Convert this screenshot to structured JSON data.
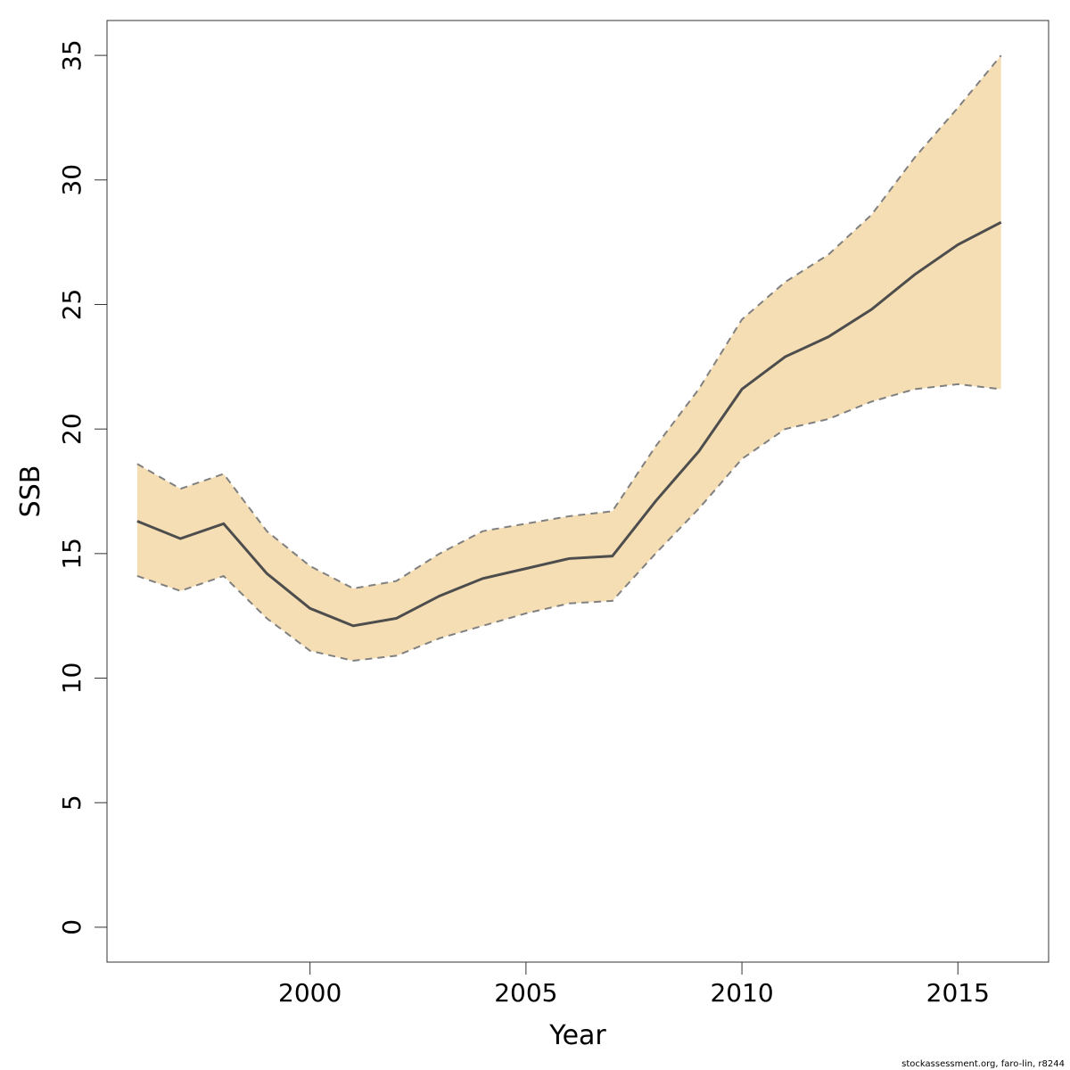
{
  "chart_data": {
    "type": "area",
    "title": "",
    "xlabel": "Year",
    "ylabel": "SSB",
    "xlim": [
      1995.3,
      2017.1
    ],
    "ylim": [
      -1.4,
      36.4
    ],
    "x_ticks": [
      2000,
      2005,
      2010,
      2015
    ],
    "y_ticks": [
      0,
      5,
      10,
      15,
      20,
      25,
      30,
      35
    ],
    "grid": false,
    "legend": "none",
    "x": [
      1996,
      1997,
      1998,
      1999,
      2000,
      2001,
      2002,
      2003,
      2004,
      2005,
      2006,
      2007,
      2008,
      2009,
      2010,
      2011,
      2012,
      2013,
      2014,
      2015,
      2016
    ],
    "series": [
      {
        "role": "estimate",
        "style": "solid",
        "values": [
          16.3,
          15.6,
          16.2,
          14.2,
          12.8,
          12.1,
          12.4,
          13.3,
          14.0,
          14.4,
          14.8,
          14.9,
          17.1,
          19.1,
          21.6,
          22.9,
          23.7,
          24.8,
          26.2,
          27.4,
          28.3
        ]
      },
      {
        "role": "upper",
        "style": "dashed",
        "values": [
          18.6,
          17.6,
          18.2,
          15.9,
          14.5,
          13.6,
          13.9,
          15.0,
          15.9,
          16.2,
          16.5,
          16.7,
          19.3,
          21.6,
          24.4,
          25.9,
          27.0,
          28.6,
          30.9,
          32.9,
          35.0
        ]
      },
      {
        "role": "lower",
        "style": "dashed",
        "values": [
          14.1,
          13.5,
          14.1,
          12.4,
          11.1,
          10.7,
          10.9,
          11.6,
          12.1,
          12.6,
          13.0,
          13.1,
          15.0,
          16.8,
          18.8,
          20.0,
          20.4,
          21.1,
          21.6,
          21.8,
          21.6
        ]
      }
    ],
    "colors": {
      "band": "#f5deb3",
      "line": "#4d4d4d",
      "bounds": "#808080",
      "axis": "#333333"
    }
  },
  "footer": {
    "credit": "stockassessment.org, faro-lin, r8244"
  }
}
